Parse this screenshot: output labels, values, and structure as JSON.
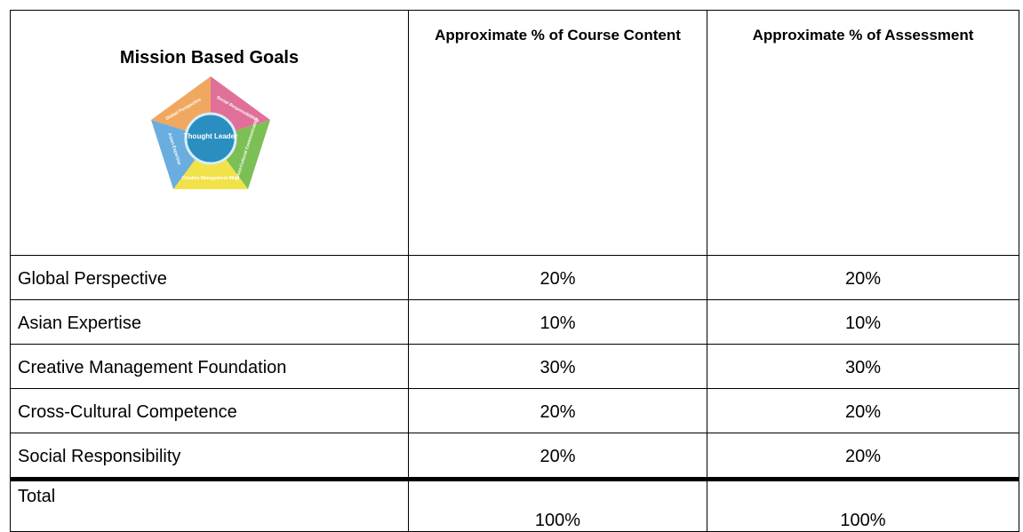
{
  "table": {
    "header": [
      "Mission Based Goals",
      "Approximate % of Course Content",
      "Approximate % of Assessment"
    ],
    "graphic": {
      "center": "Thought Leader",
      "segments": [
        "Global Perspective",
        "Social Responsibilities",
        "Cross-Cultural Communication",
        "Creative Management Mind",
        "Asian Expertise"
      ]
    },
    "rows": [
      [
        "Global Perspective",
        "20%",
        "20%"
      ],
      [
        "Asian Expertise",
        "10%",
        "10%"
      ],
      [
        "Creative Management Foundation",
        "30%",
        "30%"
      ],
      [
        "Cross-Cultural Competence",
        "20%",
        "20%"
      ],
      [
        "Social Responsibility",
        "20%",
        "20%"
      ]
    ],
    "total": [
      "Total",
      "100%",
      "100%"
    ]
  }
}
